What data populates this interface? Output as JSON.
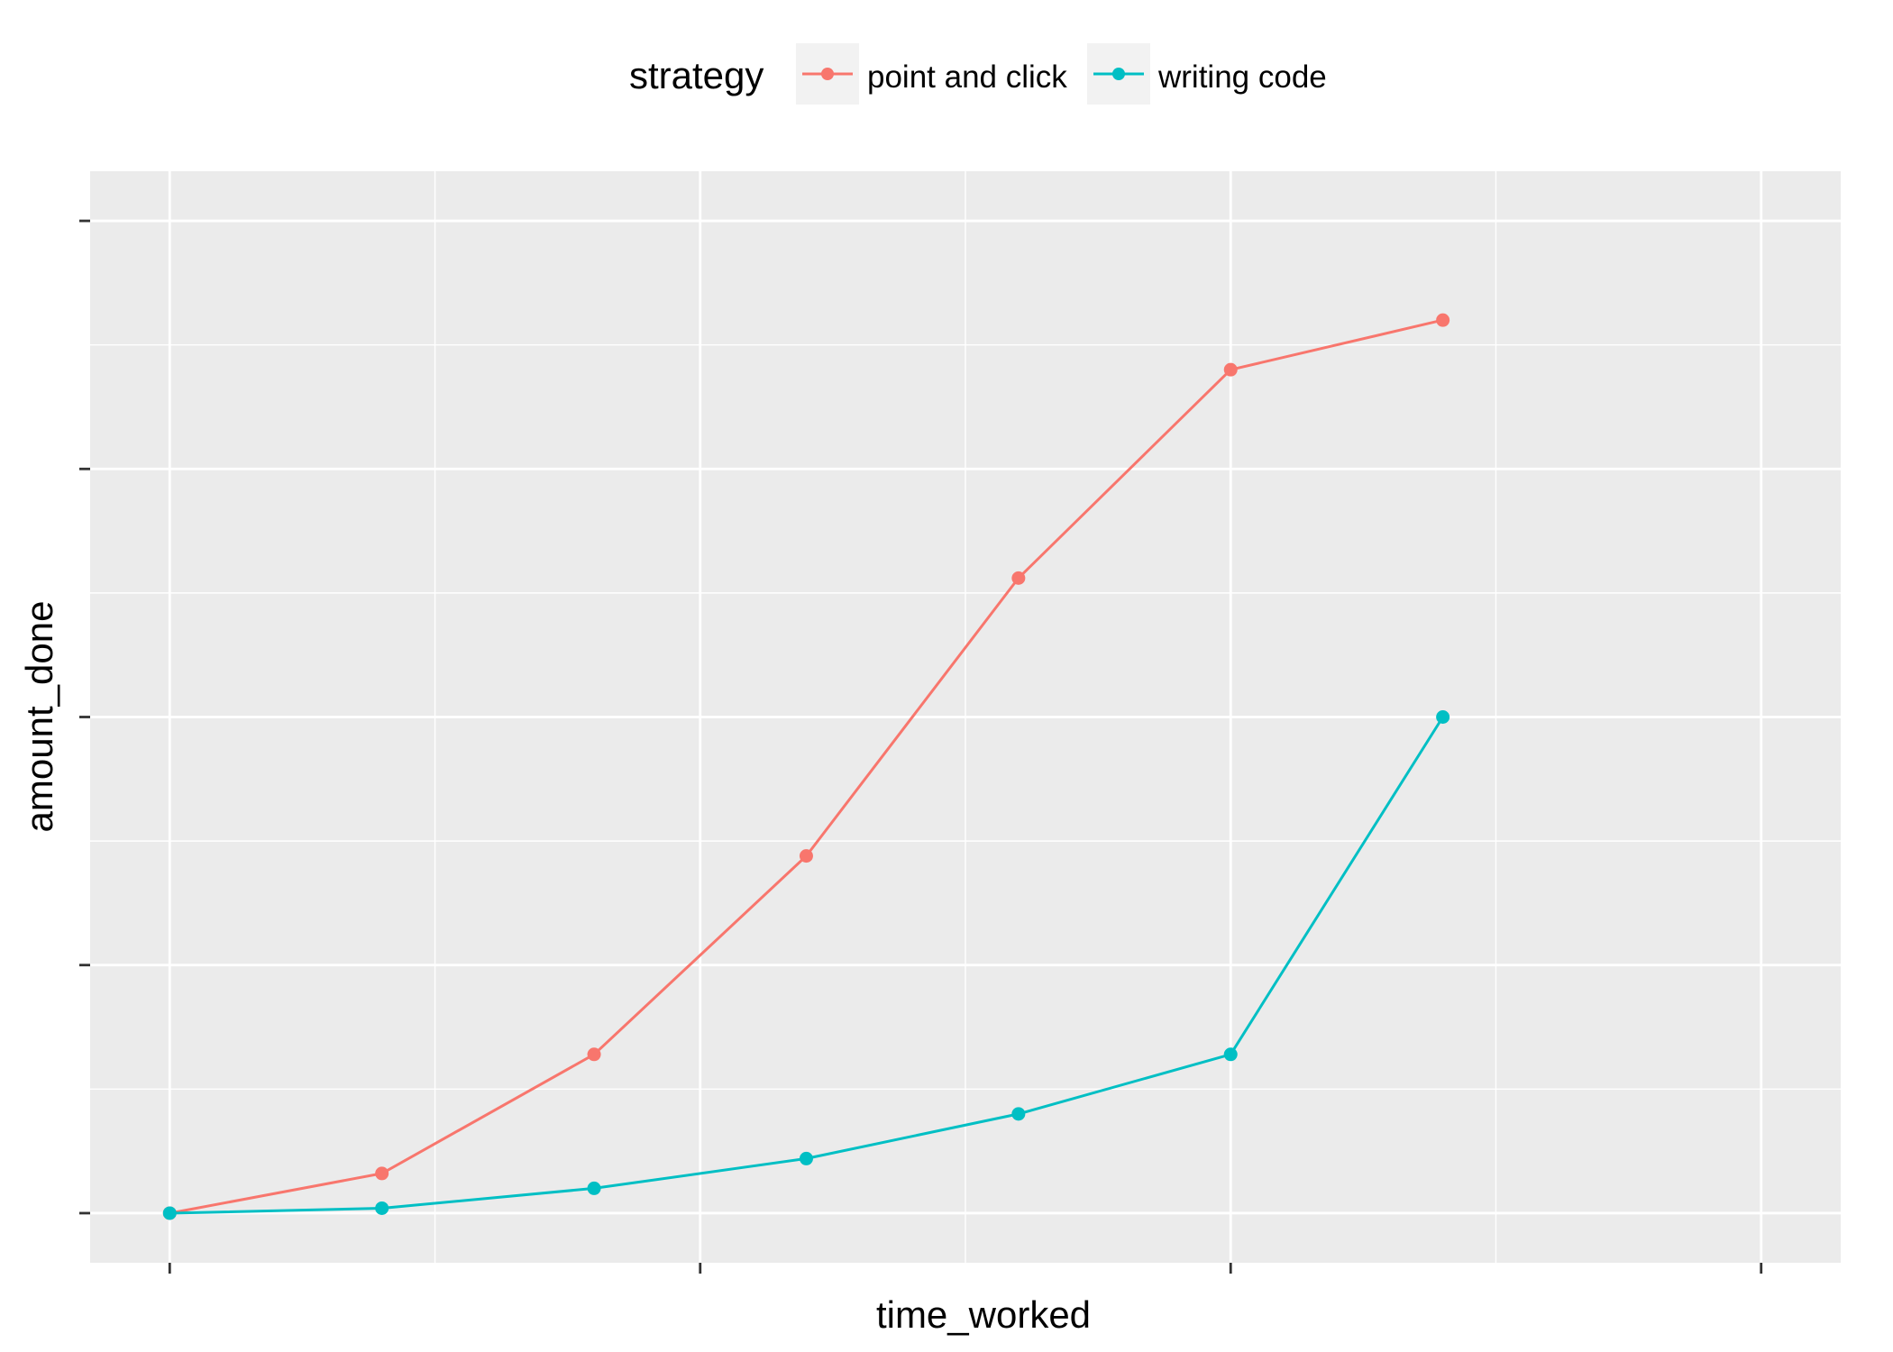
{
  "chart_data": {
    "type": "line",
    "title": "",
    "xlabel": "time_worked",
    "ylabel": "amount_done",
    "xlim": [
      -0.15,
      3.15
    ],
    "ylim": [
      -0.1,
      2.1
    ],
    "x_major_breaks": [
      0,
      1,
      2,
      3
    ],
    "x_minor_breaks": [
      0.5,
      1.5,
      2.5
    ],
    "y_major_breaks": [
      0,
      0.5,
      1,
      1.5,
      2
    ],
    "y_minor_breaks": [
      0.25,
      0.75,
      1.25,
      1.75
    ],
    "tick_labels_shown": false,
    "grid": true,
    "legend": {
      "title": "strategy",
      "position": "top",
      "entries": [
        "point and click",
        "writing code"
      ]
    },
    "series": [
      {
        "name": "point and click",
        "color": "#F8766D",
        "x": [
          0,
          0.4,
          0.8,
          1.2,
          1.6,
          2.0,
          2.4
        ],
        "y": [
          0,
          0.08,
          0.32,
          0.72,
          1.28,
          1.7,
          1.8
        ]
      },
      {
        "name": "writing code",
        "color": "#00BFC4",
        "x": [
          0,
          0.4,
          0.8,
          1.2,
          1.6,
          2.0,
          2.4
        ],
        "y": [
          0,
          0.01,
          0.05,
          0.11,
          0.2,
          0.32,
          1.0
        ]
      }
    ],
    "panel_background": "#EBEBEB",
    "gridline_color": "#FFFFFF",
    "axis_tick_color": "#333333"
  }
}
